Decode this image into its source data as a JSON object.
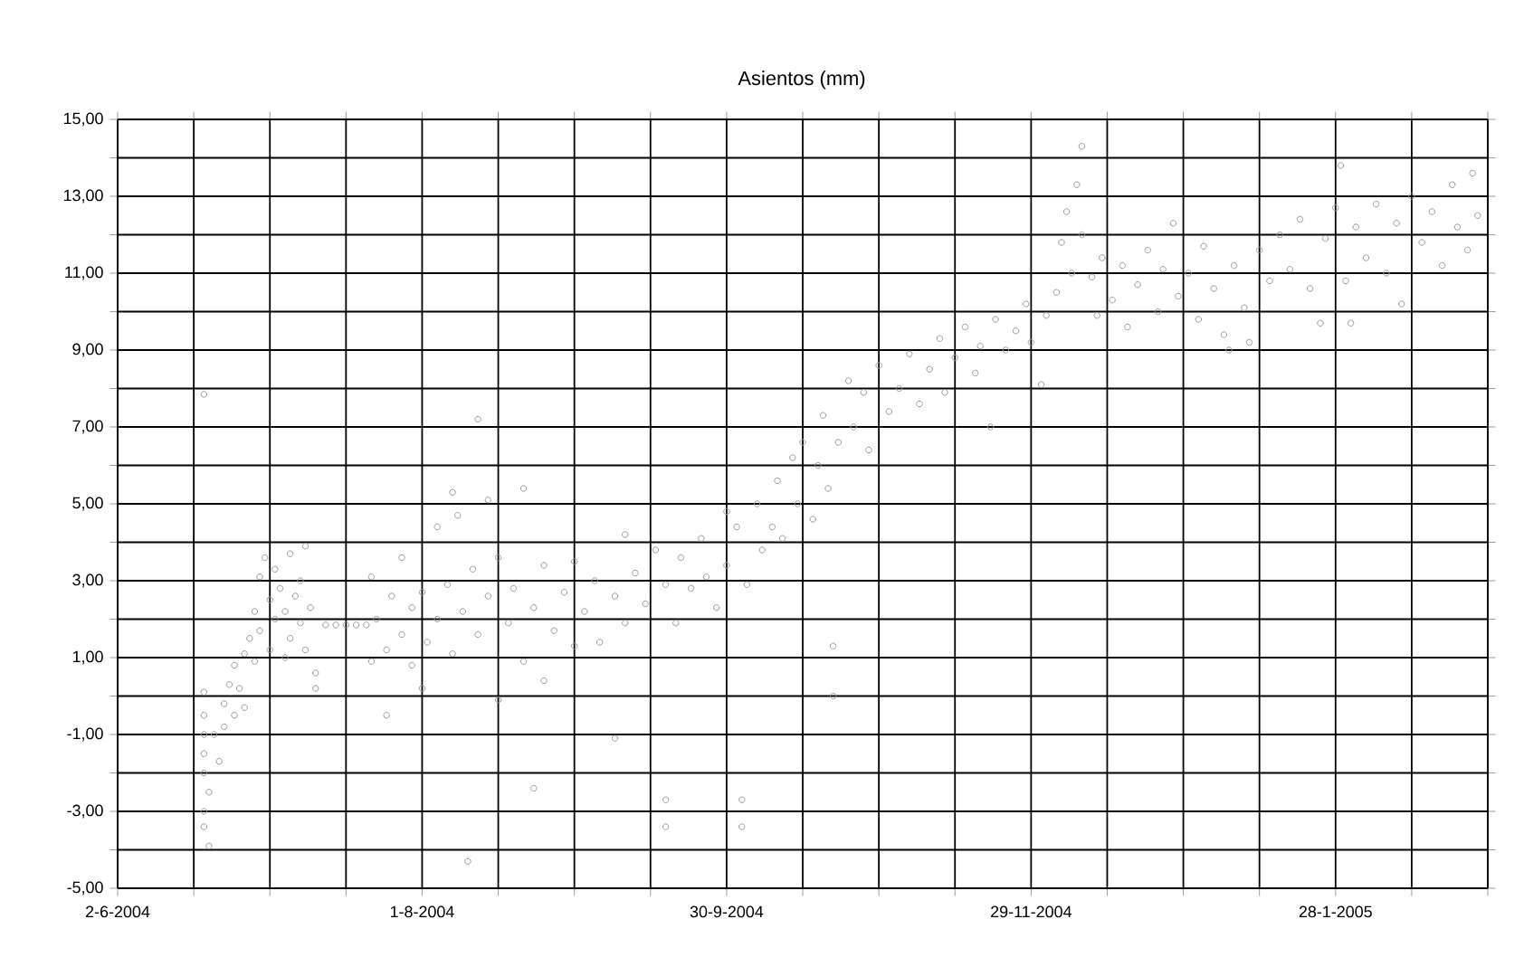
{
  "chart_data": {
    "type": "scatter",
    "title": "Asientos (mm)",
    "xlim": [
      "2004-06-02",
      "2005-02-27"
    ],
    "xticks": [
      {
        "value": "2004-06-02",
        "label": "2-6-2004"
      },
      {
        "value": "2004-06-17",
        "label": null
      },
      {
        "value": "2004-07-02",
        "label": null
      },
      {
        "value": "2004-07-17",
        "label": null
      },
      {
        "value": "2004-08-01",
        "label": "1-8-2004"
      },
      {
        "value": "2004-08-16",
        "label": null
      },
      {
        "value": "2004-08-31",
        "label": null
      },
      {
        "value": "2004-09-15",
        "label": null
      },
      {
        "value": "2004-09-30",
        "label": "30-9-2004"
      },
      {
        "value": "2004-10-15",
        "label": null
      },
      {
        "value": "2004-10-30",
        "label": null
      },
      {
        "value": "2004-11-14",
        "label": null
      },
      {
        "value": "2004-11-29",
        "label": "29-11-2004"
      },
      {
        "value": "2004-12-14",
        "label": null
      },
      {
        "value": "2004-12-29",
        "label": null
      },
      {
        "value": "2005-01-13",
        "label": null
      },
      {
        "value": "2005-01-28",
        "label": "28-1-2005"
      },
      {
        "value": "2005-02-12",
        "label": null
      },
      {
        "value": "2005-02-27",
        "label": null
      }
    ],
    "ylim": [
      -5,
      15
    ],
    "yticks": [
      {
        "value": -5,
        "label": "-5,00"
      },
      {
        "value": -4,
        "label": null
      },
      {
        "value": -3,
        "label": "-3,00"
      },
      {
        "value": -2,
        "label": null
      },
      {
        "value": -1,
        "label": "-1,00"
      },
      {
        "value": 0,
        "label": null
      },
      {
        "value": 1,
        "label": "1,00"
      },
      {
        "value": 2,
        "label": null
      },
      {
        "value": 3,
        "label": "3,00"
      },
      {
        "value": 4,
        "label": null
      },
      {
        "value": 5,
        "label": "5,00"
      },
      {
        "value": 6,
        "label": null
      },
      {
        "value": 7,
        "label": "7,00"
      },
      {
        "value": 8,
        "label": null
      },
      {
        "value": 9,
        "label": "9,00"
      },
      {
        "value": 10,
        "label": null
      },
      {
        "value": 11,
        "label": "11,00"
      },
      {
        "value": 12,
        "label": null
      },
      {
        "value": 13,
        "label": "13,00"
      },
      {
        "value": 14,
        "label": null
      },
      {
        "value": 15,
        "label": "15,00"
      }
    ],
    "grid": true,
    "marker": "circle",
    "series": [
      {
        "color": "#999999",
        "x": [
          "2004-06-19",
          "2004-06-19",
          "2004-06-19",
          "2004-06-19",
          "2004-06-19",
          "2004-06-19",
          "2004-06-20",
          "2004-06-19",
          "2004-06-19",
          "2004-06-20",
          "2004-06-21",
          "2004-06-22",
          "2004-06-23",
          "2004-06-23",
          "2004-06-24",
          "2004-06-25",
          "2004-06-25",
          "2004-06-26",
          "2004-06-27",
          "2004-06-27",
          "2004-06-28",
          "2004-06-29",
          "2004-06-29",
          "2004-06-30",
          "2004-06-30",
          "2004-07-01",
          "2004-07-02",
          "2004-07-02",
          "2004-07-03",
          "2004-07-03",
          "2004-07-04",
          "2004-07-05",
          "2004-07-05",
          "2004-07-06",
          "2004-07-06",
          "2004-07-07",
          "2004-07-08",
          "2004-07-08",
          "2004-07-09",
          "2004-07-09",
          "2004-07-10",
          "2004-07-11",
          "2004-07-11",
          "2004-07-13",
          "2004-07-15",
          "2004-07-17",
          "2004-07-19",
          "2004-07-21",
          "2004-07-22",
          "2004-07-22",
          "2004-07-23",
          "2004-07-25",
          "2004-07-25",
          "2004-07-26",
          "2004-07-28",
          "2004-07-28",
          "2004-07-30",
          "2004-07-30",
          "2004-08-01",
          "2004-08-01",
          "2004-08-02",
          "2004-08-04",
          "2004-08-04",
          "2004-08-06",
          "2004-08-07",
          "2004-08-07",
          "2004-08-08",
          "2004-08-09",
          "2004-08-10",
          "2004-08-11",
          "2004-08-12",
          "2004-08-12",
          "2004-08-14",
          "2004-08-14",
          "2004-08-16",
          "2004-08-16",
          "2004-08-18",
          "2004-08-19",
          "2004-08-21",
          "2004-08-21",
          "2004-08-23",
          "2004-08-23",
          "2004-08-25",
          "2004-08-25",
          "2004-08-27",
          "2004-08-29",
          "2004-08-31",
          "2004-08-31",
          "2004-09-02",
          "2004-09-04",
          "2004-09-05",
          "2004-09-08",
          "2004-09-08",
          "2004-09-10",
          "2004-09-10",
          "2004-09-12",
          "2004-09-14",
          "2004-09-16",
          "2004-09-18",
          "2004-09-18",
          "2004-09-18",
          "2004-09-20",
          "2004-09-21",
          "2004-09-23",
          "2004-09-25",
          "2004-09-26",
          "2004-09-28",
          "2004-09-30",
          "2004-09-30",
          "2004-10-03",
          "2004-10-03",
          "2004-10-02",
          "2004-10-04",
          "2004-10-06",
          "2004-10-07",
          "2004-10-09",
          "2004-10-10",
          "2004-10-11",
          "2004-10-13",
          "2004-10-14",
          "2004-10-15",
          "2004-10-21",
          "2004-10-21",
          "2004-10-17",
          "2004-10-18",
          "2004-10-19",
          "2004-10-20",
          "2004-10-22",
          "2004-10-24",
          "2004-10-25",
          "2004-10-27",
          "2004-10-28",
          "2004-10-30",
          "2004-11-01",
          "2004-11-03",
          "2004-11-05",
          "2004-11-07",
          "2004-11-09",
          "2004-11-11",
          "2004-11-12",
          "2004-11-14",
          "2004-11-16",
          "2004-11-18",
          "2004-11-19",
          "2004-11-21",
          "2004-11-22",
          "2004-11-24",
          "2004-11-26",
          "2004-11-28",
          "2004-11-29",
          "2004-12-01",
          "2004-12-02",
          "2004-12-04",
          "2004-12-05",
          "2004-12-06",
          "2004-12-07",
          "2004-12-08",
          "2004-12-09",
          "2004-12-09",
          "2004-12-11",
          "2004-12-12",
          "2004-12-13",
          "2004-12-15",
          "2004-12-17",
          "2004-12-18",
          "2004-12-20",
          "2004-12-22",
          "2004-12-24",
          "2004-12-25",
          "2004-12-27",
          "2004-12-28",
          "2004-12-30",
          "2005-01-01",
          "2005-01-02",
          "2005-01-04",
          "2005-01-06",
          "2005-01-07",
          "2005-01-08",
          "2005-01-10",
          "2005-01-11",
          "2005-01-13",
          "2005-01-15",
          "2005-01-17",
          "2005-01-19",
          "2005-01-21",
          "2005-01-23",
          "2005-01-25",
          "2005-01-26",
          "2005-01-28",
          "2005-01-29",
          "2005-01-30",
          "2005-01-31",
          "2005-02-01",
          "2005-02-03",
          "2005-02-05",
          "2005-02-07",
          "2005-02-09",
          "2005-02-10",
          "2005-02-12",
          "2005-02-14",
          "2005-02-16",
          "2005-02-18",
          "2005-02-20",
          "2005-02-21",
          "2005-02-23",
          "2005-02-24",
          "2005-02-25"
        ],
        "values": [
          7.85,
          0.1,
          -0.5,
          -1.0,
          -1.5,
          -2.0,
          -2.5,
          -3.0,
          -3.4,
          -3.9,
          -1.0,
          -1.7,
          -0.8,
          -0.2,
          0.3,
          -0.5,
          0.8,
          0.2,
          1.1,
          -0.3,
          1.5,
          2.2,
          0.9,
          3.1,
          1.7,
          3.6,
          2.5,
          1.2,
          2.0,
          3.3,
          2.8,
          1.0,
          2.2,
          3.7,
          1.5,
          2.6,
          1.9,
          3.0,
          1.2,
          3.9,
          2.3,
          0.2,
          0.6,
          1.85,
          1.85,
          1.85,
          1.85,
          1.85,
          3.1,
          0.9,
          2.0,
          -0.5,
          1.2,
          2.6,
          3.6,
          1.6,
          2.3,
          0.8,
          0.2,
          2.7,
          1.4,
          4.4,
          2.0,
          2.9,
          5.3,
          1.1,
          4.7,
          2.2,
          -4.3,
          3.3,
          7.2,
          1.6,
          5.1,
          2.6,
          -0.1,
          3.6,
          1.9,
          2.8,
          5.4,
          0.9,
          -2.4,
          2.3,
          0.4,
          3.4,
          1.7,
          2.7,
          3.5,
          1.3,
          2.2,
          3.0,
          1.4,
          -1.1,
          2.6,
          4.2,
          1.9,
          3.2,
          2.4,
          3.8,
          -2.7,
          -3.4,
          2.9,
          1.9,
          3.6,
          2.8,
          4.1,
          3.1,
          2.3,
          4.8,
          3.4,
          -2.7,
          -3.4,
          4.4,
          2.9,
          5.0,
          3.8,
          4.4,
          5.6,
          4.1,
          6.2,
          5.0,
          6.6,
          1.3,
          0.0,
          4.6,
          6.0,
          7.3,
          5.4,
          6.6,
          8.2,
          7.0,
          7.9,
          6.4,
          8.6,
          7.4,
          8.0,
          8.9,
          7.6,
          8.5,
          9.3,
          7.9,
          8.8,
          9.6,
          8.4,
          9.1,
          7.0,
          9.8,
          9.0,
          9.5,
          10.2,
          9.2,
          8.1,
          9.9,
          10.5,
          11.8,
          12.6,
          11.0,
          13.3,
          14.3,
          12.0,
          10.9,
          9.9,
          11.4,
          10.3,
          11.2,
          9.6,
          10.7,
          11.6,
          10.0,
          11.1,
          12.3,
          10.4,
          11.0,
          9.8,
          11.7,
          10.6,
          9.4,
          9.0,
          11.2,
          10.1,
          9.2,
          11.6,
          10.8,
          12.0,
          11.1,
          12.4,
          10.6,
          9.7,
          11.9,
          12.7,
          13.8,
          10.8,
          9.7,
          12.2,
          11.4,
          12.8,
          11.0,
          12.3,
          10.2,
          13.0,
          11.8,
          12.6,
          11.2,
          13.3,
          12.2,
          11.6,
          13.6,
          12.5
        ]
      }
    ]
  }
}
